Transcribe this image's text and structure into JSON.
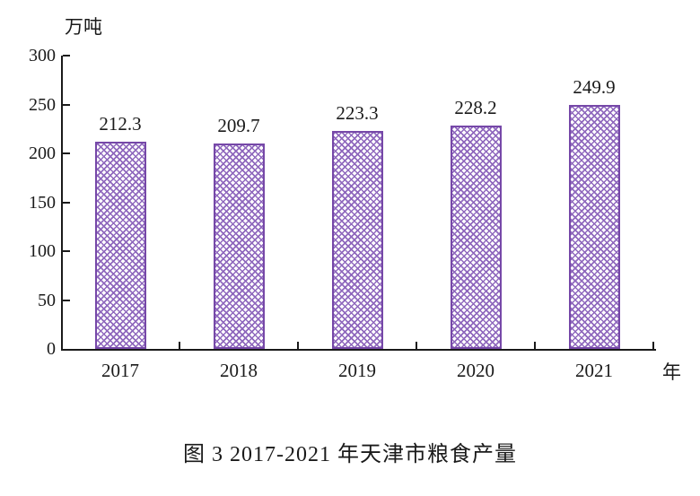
{
  "chart_data": {
    "type": "bar",
    "categories": [
      "2017",
      "2018",
      "2019",
      "2020",
      "2021"
    ],
    "values": [
      212.3,
      209.7,
      223.3,
      228.2,
      249.9
    ],
    "value_labels": [
      "212.3",
      "209.7",
      "223.3",
      "228.2",
      "249.9"
    ],
    "title": "图 3 2017-2021 年天津市粮食产量",
    "ylabel": "万吨",
    "xlabel": "年",
    "ylim": [
      0,
      300
    ],
    "yticks": [
      0,
      50,
      100,
      150,
      200,
      250,
      300
    ],
    "grid": false,
    "legend": "none",
    "bar_border_color": "#7648a8",
    "bar_pattern_color": "#8f68bd",
    "bar_pattern": "diagonal-crosshatch",
    "axis_color": "#1a1a1a",
    "tick_direction": "inward"
  }
}
